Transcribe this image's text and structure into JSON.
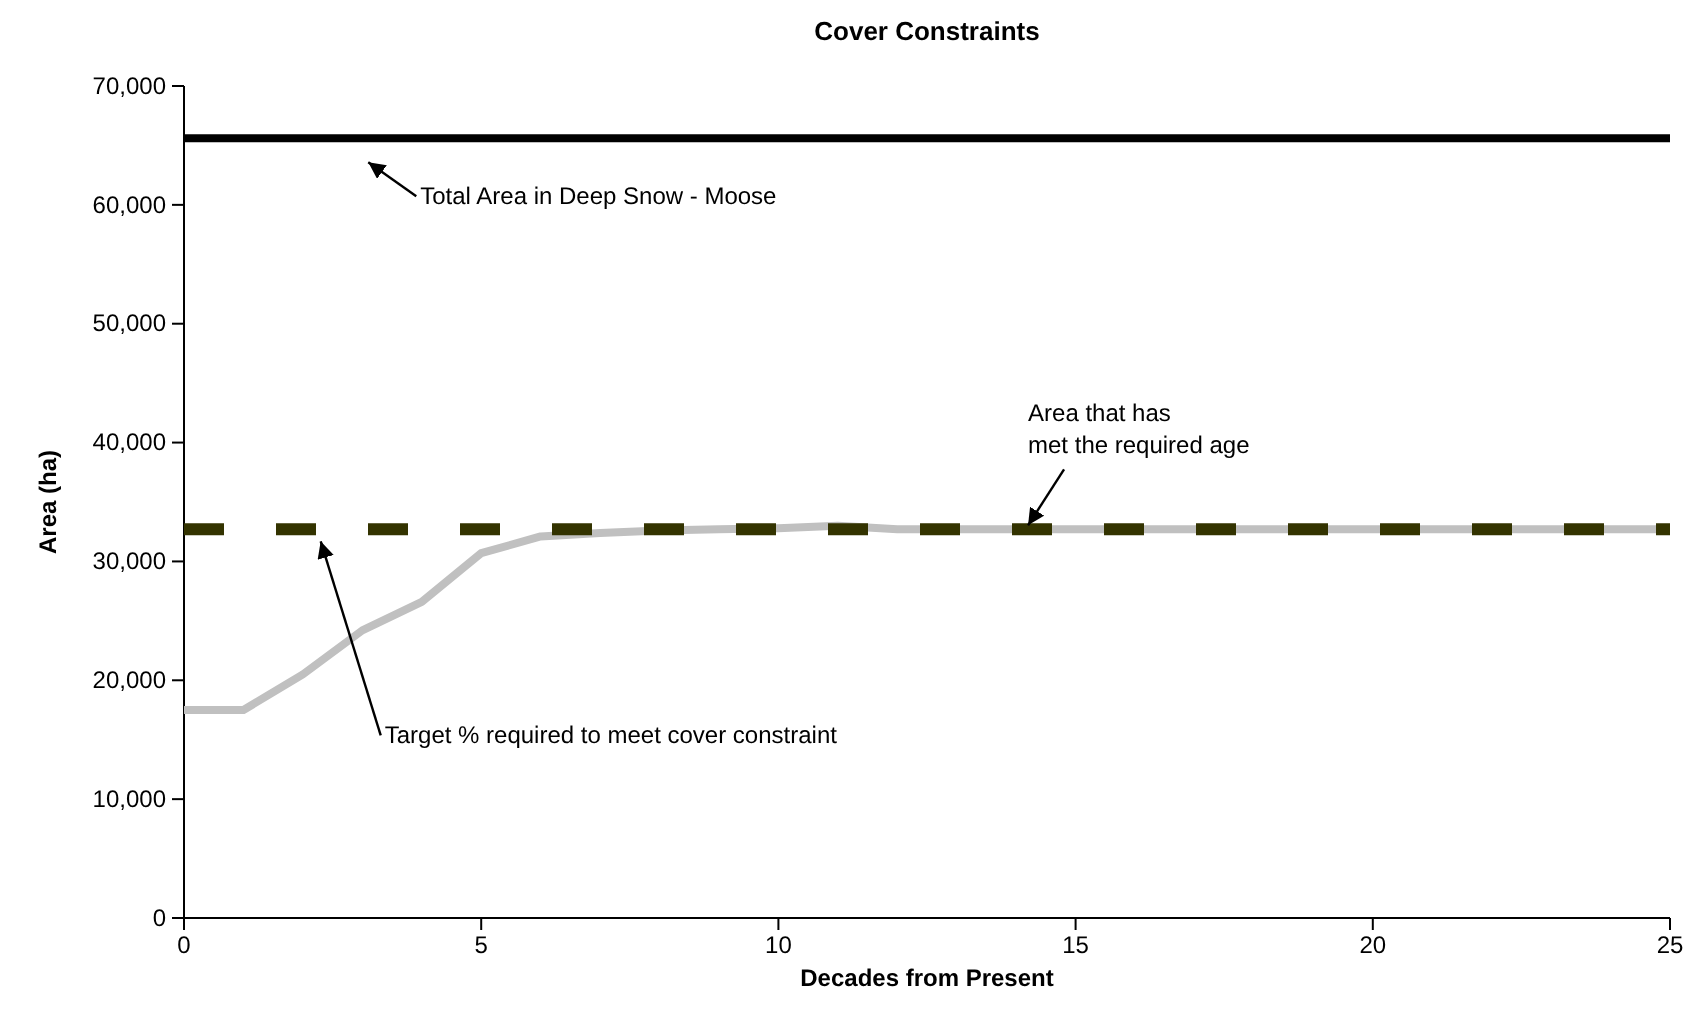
{
  "chart_data": {
    "type": "line",
    "title": "Cover Constraints",
    "xlabel": "Decades from Present",
    "ylabel": "Area (ha)",
    "xlim": [
      0,
      25
    ],
    "xticks": [
      0,
      5,
      10,
      15,
      20,
      25
    ],
    "ylim": [
      0,
      70000
    ],
    "yticks": [
      {
        "value": 0,
        "label": "0"
      },
      {
        "value": 10000,
        "label": "10,000"
      },
      {
        "value": 20000,
        "label": "20,000"
      },
      {
        "value": 30000,
        "label": "30,000"
      },
      {
        "value": 40000,
        "label": "40,000"
      },
      {
        "value": 50000,
        "label": "50,000"
      },
      {
        "value": 60000,
        "label": "60,000"
      },
      {
        "value": 70000,
        "label": "70,000"
      }
    ],
    "grid": false,
    "series": [
      {
        "color": "#000000",
        "x": [
          0,
          25
        ],
        "values": [
          65600,
          65600
        ],
        "line_style": "solid"
      },
      {
        "color": "#c0c0c0",
        "x": [
          0,
          1,
          2,
          3,
          4,
          5,
          6,
          7,
          8,
          9,
          10,
          11,
          12,
          13,
          14,
          15,
          16,
          17,
          18,
          19,
          20,
          21,
          22,
          23,
          24,
          25
        ],
        "values": [
          17500,
          17500,
          20500,
          24200,
          26600,
          30700,
          32100,
          32400,
          32600,
          32700,
          32800,
          33000,
          32700,
          32700,
          32700,
          32700,
          32700,
          32700,
          32700,
          32700,
          32700,
          32700,
          32700,
          32700,
          32700,
          32700
        ],
        "line_style": "solid"
      },
      {
        "color": "#333300",
        "x": [
          0,
          25
        ],
        "values": [
          32700,
          32700
        ],
        "line_style": "dashed"
      }
    ],
    "annotations": [
      {
        "text": "Total Area in Deep Snow  - Moose",
        "x": 3.1,
        "y": 65600
      },
      {
        "text": "Area that has\nmet the required age",
        "x": 14.2,
        "y": 32700
      },
      {
        "text": "Target % required to meet cover constraint",
        "x": 2.3,
        "y": 32700
      }
    ]
  }
}
